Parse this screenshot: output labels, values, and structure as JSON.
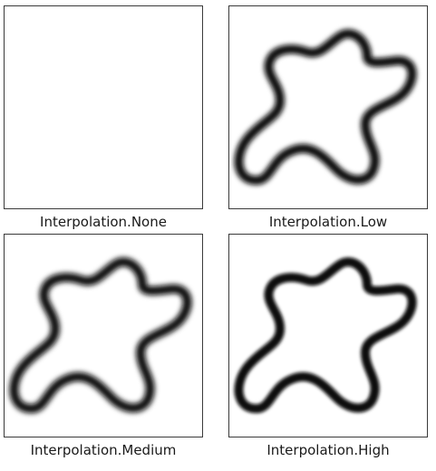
{
  "panels": [
    {
      "id": "none",
      "caption": "Interpolation.None",
      "style": "pixelated"
    },
    {
      "id": "low",
      "caption": "Interpolation.Low",
      "style": "blur-strong"
    },
    {
      "id": "medium",
      "caption": "Interpolation.Medium",
      "style": "blur-strong"
    },
    {
      "id": "high",
      "caption": "Interpolation.High",
      "style": "blur-soft"
    }
  ],
  "colors": {
    "stroke": "#0a0a0a",
    "border": "#3a3a3a",
    "background": "#ffffff"
  },
  "icon": "blob-outline-icon"
}
